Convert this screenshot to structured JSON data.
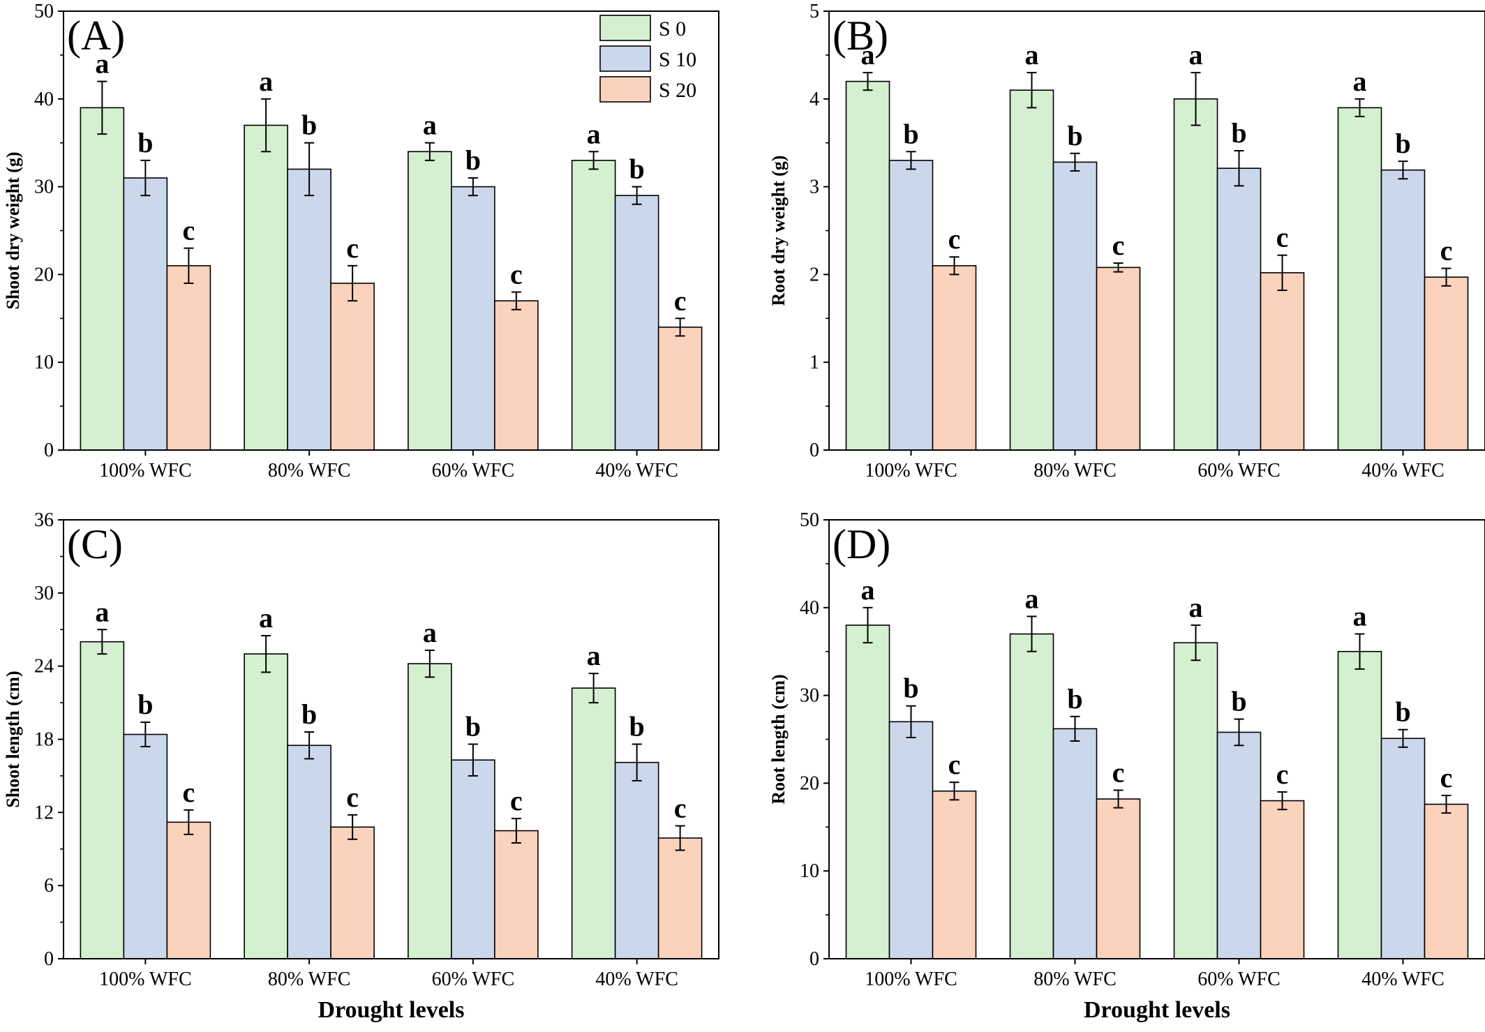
{
  "colors": {
    "S 0": "#d5f0d0",
    "S 10": "#cbd8ec",
    "S 20": "#fbd3bd",
    "stroke": "#000000"
  },
  "chart_data": [
    {
      "type": "bar",
      "panel_label": "(A)",
      "ylabel": "Shoot dry weight (g)",
      "xlabel": "",
      "ylim": [
        0,
        50
      ],
      "yticks": [
        0,
        10,
        20,
        30,
        40,
        50
      ],
      "categories": [
        "100% WFC",
        "80% WFC",
        "60% WFC",
        "40% WFC"
      ],
      "legend": {
        "entries": [
          "S 0",
          "S 10",
          "S 20"
        ],
        "placement": "top-right"
      },
      "series": [
        {
          "name": "S 0",
          "values": [
            39,
            37,
            34,
            33
          ],
          "errors": [
            3,
            3,
            1,
            1
          ],
          "letters": [
            "a",
            "a",
            "a",
            "a"
          ]
        },
        {
          "name": "S 10",
          "values": [
            31,
            32,
            30,
            29
          ],
          "errors": [
            2,
            3,
            1,
            1
          ],
          "letters": [
            "b",
            "b",
            "b",
            "b"
          ]
        },
        {
          "name": "S 20",
          "values": [
            21,
            19,
            17,
            14
          ],
          "errors": [
            2,
            2,
            1,
            1
          ],
          "letters": [
            "c",
            "c",
            "c",
            "c"
          ]
        }
      ]
    },
    {
      "type": "bar",
      "panel_label": "(B)",
      "ylabel": "Root dry weight (g)",
      "xlabel": "",
      "ylim": [
        0,
        5
      ],
      "yticks": [
        0,
        1,
        2,
        3,
        4,
        5
      ],
      "categories": [
        "100% WFC",
        "80% WFC",
        "60% WFC",
        "40% WFC"
      ],
      "series": [
        {
          "name": "S 0",
          "values": [
            4.2,
            4.1,
            4.0,
            3.9
          ],
          "errors": [
            0.1,
            0.2,
            0.3,
            0.1
          ],
          "letters": [
            "a",
            "a",
            "a",
            "a"
          ]
        },
        {
          "name": "S 10",
          "values": [
            3.3,
            3.28,
            3.21,
            3.19
          ],
          "errors": [
            0.1,
            0.1,
            0.2,
            0.1
          ],
          "letters": [
            "b",
            "b",
            "b",
            "b"
          ]
        },
        {
          "name": "S 20",
          "values": [
            2.1,
            2.08,
            2.02,
            1.97
          ],
          "errors": [
            0.1,
            0.05,
            0.2,
            0.1
          ],
          "letters": [
            "c",
            "c",
            "c",
            "c"
          ]
        }
      ]
    },
    {
      "type": "bar",
      "panel_label": "(C)",
      "ylabel": "Shoot length (cm)",
      "xlabel": "Drought levels",
      "ylim": [
        0,
        36
      ],
      "yticks": [
        0,
        6,
        12,
        18,
        24,
        30,
        36
      ],
      "categories": [
        "100% WFC",
        "80% WFC",
        "60% WFC",
        "40% WFC"
      ],
      "series": [
        {
          "name": "S 0",
          "values": [
            26,
            25,
            24.2,
            22.2
          ],
          "errors": [
            1,
            1.5,
            1.1,
            1.2
          ],
          "letters": [
            "a",
            "a",
            "a",
            "a"
          ]
        },
        {
          "name": "S 10",
          "values": [
            18.4,
            17.5,
            16.3,
            16.1
          ],
          "errors": [
            1,
            1.1,
            1.3,
            1.5
          ],
          "letters": [
            "b",
            "b",
            "b",
            "b"
          ]
        },
        {
          "name": "S 20",
          "values": [
            11.2,
            10.8,
            10.5,
            9.9
          ],
          "errors": [
            1,
            1,
            1,
            1
          ],
          "letters": [
            "c",
            "c",
            "c",
            "c"
          ]
        }
      ]
    },
    {
      "type": "bar",
      "panel_label": "(D)",
      "ylabel": "Root length (cm)",
      "xlabel": "Drought levels",
      "ylim": [
        0,
        50
      ],
      "yticks": [
        0,
        10,
        20,
        30,
        40,
        50
      ],
      "categories": [
        "100% WFC",
        "80% WFC",
        "60% WFC",
        "40% WFC"
      ],
      "series": [
        {
          "name": "S 0",
          "values": [
            38,
            37,
            36,
            35
          ],
          "errors": [
            2,
            2,
            2,
            2
          ],
          "letters": [
            "a",
            "a",
            "a",
            "a"
          ]
        },
        {
          "name": "S 10",
          "values": [
            27,
            26.2,
            25.8,
            25.1
          ],
          "errors": [
            1.8,
            1.4,
            1.5,
            1
          ],
          "letters": [
            "b",
            "b",
            "b",
            "b"
          ]
        },
        {
          "name": "S 20",
          "values": [
            19.1,
            18.2,
            18,
            17.6
          ],
          "errors": [
            1,
            1,
            1,
            1
          ],
          "letters": [
            "c",
            "c",
            "c",
            "c"
          ]
        }
      ]
    }
  ]
}
